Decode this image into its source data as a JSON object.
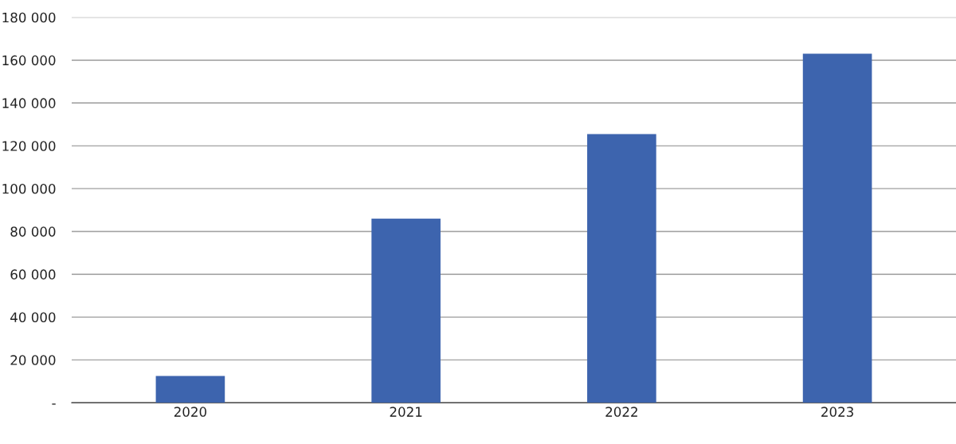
{
  "chart_data": {
    "type": "bar",
    "categories": [
      "2020",
      "2021",
      "2022",
      "2023"
    ],
    "values": [
      12500,
      86000,
      125500,
      163000
    ],
    "color": "#3d64ae",
    "ylim": [
      0,
      180000
    ],
    "yticks": [
      {
        "value": 0,
        "label": "-"
      },
      {
        "value": 20000,
        "label": "20 000"
      },
      {
        "value": 40000,
        "label": "40 000"
      },
      {
        "value": 60000,
        "label": "60 000"
      },
      {
        "value": 80000,
        "label": "80 000"
      },
      {
        "value": 100000,
        "label": "100 000"
      },
      {
        "value": 120000,
        "label": "120 000"
      },
      {
        "value": 140000,
        "label": "140 000"
      },
      {
        "value": 160000,
        "label": "160 000"
      },
      {
        "value": 180000,
        "label": "180 000"
      }
    ],
    "grid": "y"
  }
}
